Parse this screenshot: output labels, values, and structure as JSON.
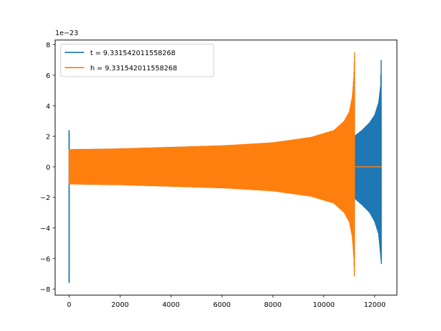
{
  "chart_data": {
    "type": "line",
    "title": "",
    "xlabel": "",
    "ylabel": "",
    "offset_text": "1e−23",
    "xlim": [
      -550,
      12870
    ],
    "ylim": [
      -8.4,
      8.3
    ],
    "xticks": [
      0,
      2000,
      4000,
      6000,
      8000,
      10000,
      12000
    ],
    "xtick_labels": [
      "0",
      "2000",
      "4000",
      "6000",
      "8000",
      "10000",
      "12000"
    ],
    "yticks": [
      -8,
      -6,
      -4,
      -2,
      0,
      2,
      4,
      6,
      8
    ],
    "ytick_labels": [
      "−8",
      "−6",
      "−4",
      "−2",
      "0",
      "2",
      "4",
      "6",
      "8"
    ],
    "legend_position": "upper-left",
    "series": [
      {
        "name": "t = 9.331542011558268",
        "color": "#1f77b4",
        "x_range": [
          0,
          12280
        ],
        "initial_spike": {
          "x": 0,
          "max": 2.4,
          "min": -7.6
        },
        "upper_envelope": [
          [
            60,
            1.15
          ],
          [
            2000,
            1.2
          ],
          [
            4000,
            1.3
          ],
          [
            6000,
            1.4
          ],
          [
            8000,
            1.55
          ],
          [
            9500,
            1.8
          ],
          [
            10500,
            2.05
          ],
          [
            11230,
            2.05
          ],
          [
            11500,
            2.4
          ],
          [
            11800,
            2.9
          ],
          [
            12000,
            3.4
          ],
          [
            12150,
            4.2
          ],
          [
            12230,
            5.3
          ],
          [
            12260,
            7.6
          ],
          [
            12280,
            0
          ]
        ],
        "lower_envelope": [
          [
            60,
            -1.15
          ],
          [
            2000,
            -1.2
          ],
          [
            4000,
            -1.3
          ],
          [
            6000,
            -1.4
          ],
          [
            8000,
            -1.55
          ],
          [
            9500,
            -1.8
          ],
          [
            10500,
            -2.05
          ],
          [
            11230,
            -2.1
          ],
          [
            11500,
            -2.5
          ],
          [
            11800,
            -3.0
          ],
          [
            12000,
            -3.6
          ],
          [
            12150,
            -4.4
          ],
          [
            12230,
            -5.8
          ],
          [
            12260,
            -6.4
          ],
          [
            12280,
            0
          ]
        ]
      },
      {
        "name": "h = 9.331542011558268",
        "color": "#ff7f0e",
        "x_range": [
          0,
          12280
        ],
        "upper_envelope": [
          [
            0,
            1.15
          ],
          [
            2000,
            1.2
          ],
          [
            4000,
            1.3
          ],
          [
            6000,
            1.4
          ],
          [
            8000,
            1.6
          ],
          [
            9500,
            1.95
          ],
          [
            10400,
            2.4
          ],
          [
            10800,
            3.0
          ],
          [
            11000,
            3.6
          ],
          [
            11120,
            4.6
          ],
          [
            11180,
            6.0
          ],
          [
            11210,
            7.6
          ],
          [
            11230,
            0.05
          ]
        ],
        "lower_envelope": [
          [
            0,
            -1.15
          ],
          [
            2000,
            -1.2
          ],
          [
            4000,
            -1.3
          ],
          [
            6000,
            -1.4
          ],
          [
            8000,
            -1.6
          ],
          [
            9500,
            -1.95
          ],
          [
            10400,
            -2.4
          ],
          [
            10800,
            -3.0
          ],
          [
            11000,
            -3.6
          ],
          [
            11120,
            -4.6
          ],
          [
            11180,
            -6.0
          ],
          [
            11210,
            -7.6
          ],
          [
            11230,
            -0.05
          ]
        ],
        "tail_value": 0
      }
    ]
  }
}
